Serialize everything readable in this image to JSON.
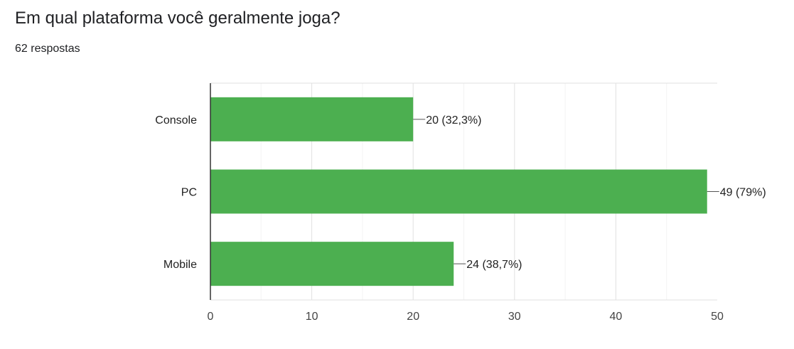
{
  "question": {
    "title": "Em qual plataforma você geralmente joga?",
    "response_count": "62 respostas"
  },
  "chart_data": {
    "type": "bar",
    "orientation": "horizontal",
    "categories": [
      "Console",
      "PC",
      "Mobile"
    ],
    "values": [
      20,
      49,
      24
    ],
    "data_labels": [
      "20 (32,3%)",
      "49 (79%)",
      "24 (38,7%)"
    ],
    "xlim": [
      0,
      50
    ],
    "x_ticks": [
      0,
      10,
      20,
      30,
      40,
      50
    ],
    "grid": true,
    "legend": "none",
    "bar_color": "#4caf50"
  }
}
